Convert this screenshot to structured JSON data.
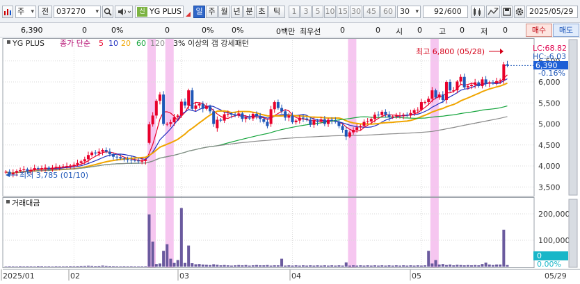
{
  "toolbar": {
    "type_select": "주",
    "prev_label": "전",
    "stock_code": "037270",
    "shin_badge": "신",
    "stock_name": "YG PLUS",
    "period_tabs": [
      "일",
      "주",
      "월",
      "년",
      "분",
      "초",
      "틱"
    ],
    "active_period": "일",
    "interval_buttons": [
      "1",
      "3",
      "5",
      "10",
      "15",
      "30",
      "45",
      "60"
    ],
    "interval_select": "30",
    "count": "92",
    "count_total": "/600",
    "date": "2025/05/29"
  },
  "infobar": {
    "price": "6,390",
    "v1": "0",
    "v2": "0%",
    "v3": "0",
    "v4": "0%",
    "v5": "0%",
    "v6": "0백만",
    "best_ask_label": "최우선",
    "v7": "0",
    "v8": "0",
    "open_label": "시",
    "open": "0",
    "high_label": "고",
    "high": "0",
    "low_label": "저",
    "low": "0",
    "buy_label": "매수",
    "sell_label": "매도"
  },
  "legend": {
    "stock_name": "YG PLUS",
    "ma_label": "종가 단순",
    "ma_periods": [
      "5",
      "10",
      "20",
      "60",
      "120"
    ],
    "ma_colors": [
      "#e8002a",
      "#1f2fbf",
      "#f0a500",
      "#12a33a",
      "#8a8a8a"
    ],
    "gap_note": "3% 이상의 갭 강세패턴"
  },
  "annotations": {
    "high_label": "최고 6,800 (05/28)",
    "low_label": "최저 3,785 (01/10)",
    "lc": "LC:68.82",
    "hc": "HC:-6.03",
    "last_price": "6,390",
    "last_change": "-0.16%",
    "volume_last": "0",
    "volume_pct": "0.00%"
  },
  "volume_panel": {
    "title": "거래대금"
  },
  "colors": {
    "up": "#e8002a",
    "down": "#1f57b8",
    "highlight": "#f6c6f0",
    "last_tag": "#1d5fd6"
  },
  "chart_data": [
    {
      "type": "candlestick",
      "title": "YG PLUS",
      "ylim": [
        3300,
        7000
      ],
      "yticks": [
        "3,500",
        "4,000",
        "4,500",
        "5,000",
        "5,500",
        "6,000",
        "6,500"
      ],
      "xticks": [
        "2025/01",
        "02",
        "03",
        "04",
        "05",
        "05/29"
      ],
      "gap_highlight_indices": [
        40,
        45,
        96,
        119
      ],
      "series": [
        {
          "name": "price",
          "open": [
            3850,
            3860,
            3800,
            3840,
            3880,
            3900,
            3920,
            3870,
            3910,
            3950,
            3930,
            3950,
            3960,
            3920,
            3960,
            3980,
            3980,
            3990,
            4000,
            4010,
            4030,
            4070,
            4110,
            4160,
            4260,
            4320,
            4300,
            4340,
            4380,
            4340,
            4280,
            4220,
            4210,
            4180,
            4160,
            4150,
            4140,
            4130,
            4110,
            4120,
            4550,
            4990,
            5200,
            5550,
            5700,
            5000,
            5000,
            5040,
            5160,
            5200,
            5530,
            5440,
            5800,
            5360,
            5440,
            5480,
            5360,
            5420,
            5300,
            4900,
            5100,
            5080,
            5230,
            5240,
            5220,
            5200,
            5250,
            5120,
            5150,
            5130,
            5240,
            5180,
            5120,
            5050,
            5000,
            5350,
            5520,
            5380,
            5300,
            5150,
            5200,
            5040,
            5080,
            5150,
            5130,
            5100,
            4980,
            5080,
            5050,
            5110,
            5000,
            5100,
            5080,
            5050,
            4950,
            4860,
            4700,
            4800,
            4860,
            4920,
            4950,
            5050,
            5060,
            5120,
            5220,
            5210,
            5290,
            5220,
            5160,
            5180,
            5200,
            5200,
            5220,
            5200,
            5260,
            5330,
            5340,
            5520,
            5520,
            5600,
            5800,
            5630,
            5700,
            5570,
            6000,
            5800,
            5800,
            6010,
            6120,
            5870,
            5900,
            5930,
            5990,
            5900,
            6060,
            5960,
            5990,
            5970,
            6020,
            6040,
            6420
          ],
          "close": [
            3860,
            3800,
            3840,
            3880,
            3900,
            3920,
            3870,
            3910,
            3950,
            3930,
            3950,
            3960,
            3920,
            3960,
            3980,
            3980,
            3990,
            4000,
            4010,
            4030,
            4070,
            4110,
            4160,
            4260,
            4320,
            4300,
            4340,
            4380,
            4340,
            4280,
            4220,
            4210,
            4180,
            4160,
            4150,
            4140,
            4130,
            4110,
            4120,
            4150,
            4990,
            5200,
            5550,
            5700,
            5000,
            5000,
            5040,
            5160,
            5200,
            5530,
            5440,
            5800,
            5360,
            5440,
            5480,
            5360,
            5420,
            5300,
            5000,
            5100,
            5080,
            5230,
            5240,
            5220,
            5200,
            5250,
            5120,
            5150,
            5130,
            5240,
            5180,
            5120,
            5050,
            4950,
            5350,
            5520,
            5380,
            5300,
            5150,
            5200,
            5040,
            5080,
            5150,
            5130,
            5100,
            4980,
            5080,
            5050,
            5110,
            5000,
            5100,
            5080,
            5050,
            4950,
            4860,
            4700,
            4800,
            4860,
            4920,
            4950,
            5050,
            5060,
            5120,
            5220,
            5210,
            5290,
            5220,
            5160,
            5180,
            5200,
            5200,
            5220,
            5200,
            5260,
            5330,
            5340,
            5520,
            5520,
            5600,
            5800,
            5630,
            5700,
            5570,
            6000,
            5800,
            5800,
            6010,
            6120,
            5870,
            5900,
            5930,
            5990,
            5900,
            6060,
            5960,
            5990,
            5970,
            6020,
            6040,
            6420,
            6390
          ]
        },
        {
          "name": "거래대금",
          "values": [
            1500,
            2000,
            1800,
            1500,
            2200,
            1800,
            2100,
            1900,
            1700,
            2500,
            2200,
            1800,
            2000,
            1600,
            2100,
            1900,
            1800,
            2000,
            2300,
            2000,
            2400,
            2800,
            3000,
            3500,
            3000,
            2500,
            2800,
            4000,
            3000,
            2600,
            2200,
            2000,
            1800,
            2100,
            1900,
            2000,
            1800,
            1700,
            1900,
            2000,
            198000,
            95000,
            10000,
            12000,
            60000,
            85000,
            30000,
            14000,
            25000,
            222000,
            14000,
            80000,
            13000,
            9000,
            10000,
            8000,
            7000,
            6000,
            9000,
            7000,
            5000,
            6000,
            5000,
            4000,
            5000,
            6000,
            5000,
            6000,
            4000,
            5000,
            6000,
            5000,
            5000,
            6000,
            4000,
            5000,
            5000,
            30000,
            4000,
            5000,
            4000,
            5000,
            4000,
            5000,
            4000,
            5000,
            4000,
            5000,
            4000,
            5000,
            4000,
            5000,
            4000,
            5000,
            4000,
            16000,
            4000,
            5000,
            4000,
            5000,
            4000,
            5000,
            4000,
            5000,
            4000,
            5000,
            4000,
            5000,
            4000,
            5000,
            4000,
            5000,
            4000,
            5000,
            4000,
            5000,
            4000,
            5000,
            60000,
            12000,
            25000,
            8000,
            10000,
            6000,
            8000,
            5000,
            7000,
            6000,
            5000,
            6000,
            5000,
            6000,
            5000,
            10000,
            15000,
            8000,
            6000,
            8000,
            8000,
            140000,
            6000
          ],
          "ylim": [
            0,
            250000
          ],
          "yticks": [
            "100,000",
            "200,000"
          ]
        }
      ]
    }
  ]
}
